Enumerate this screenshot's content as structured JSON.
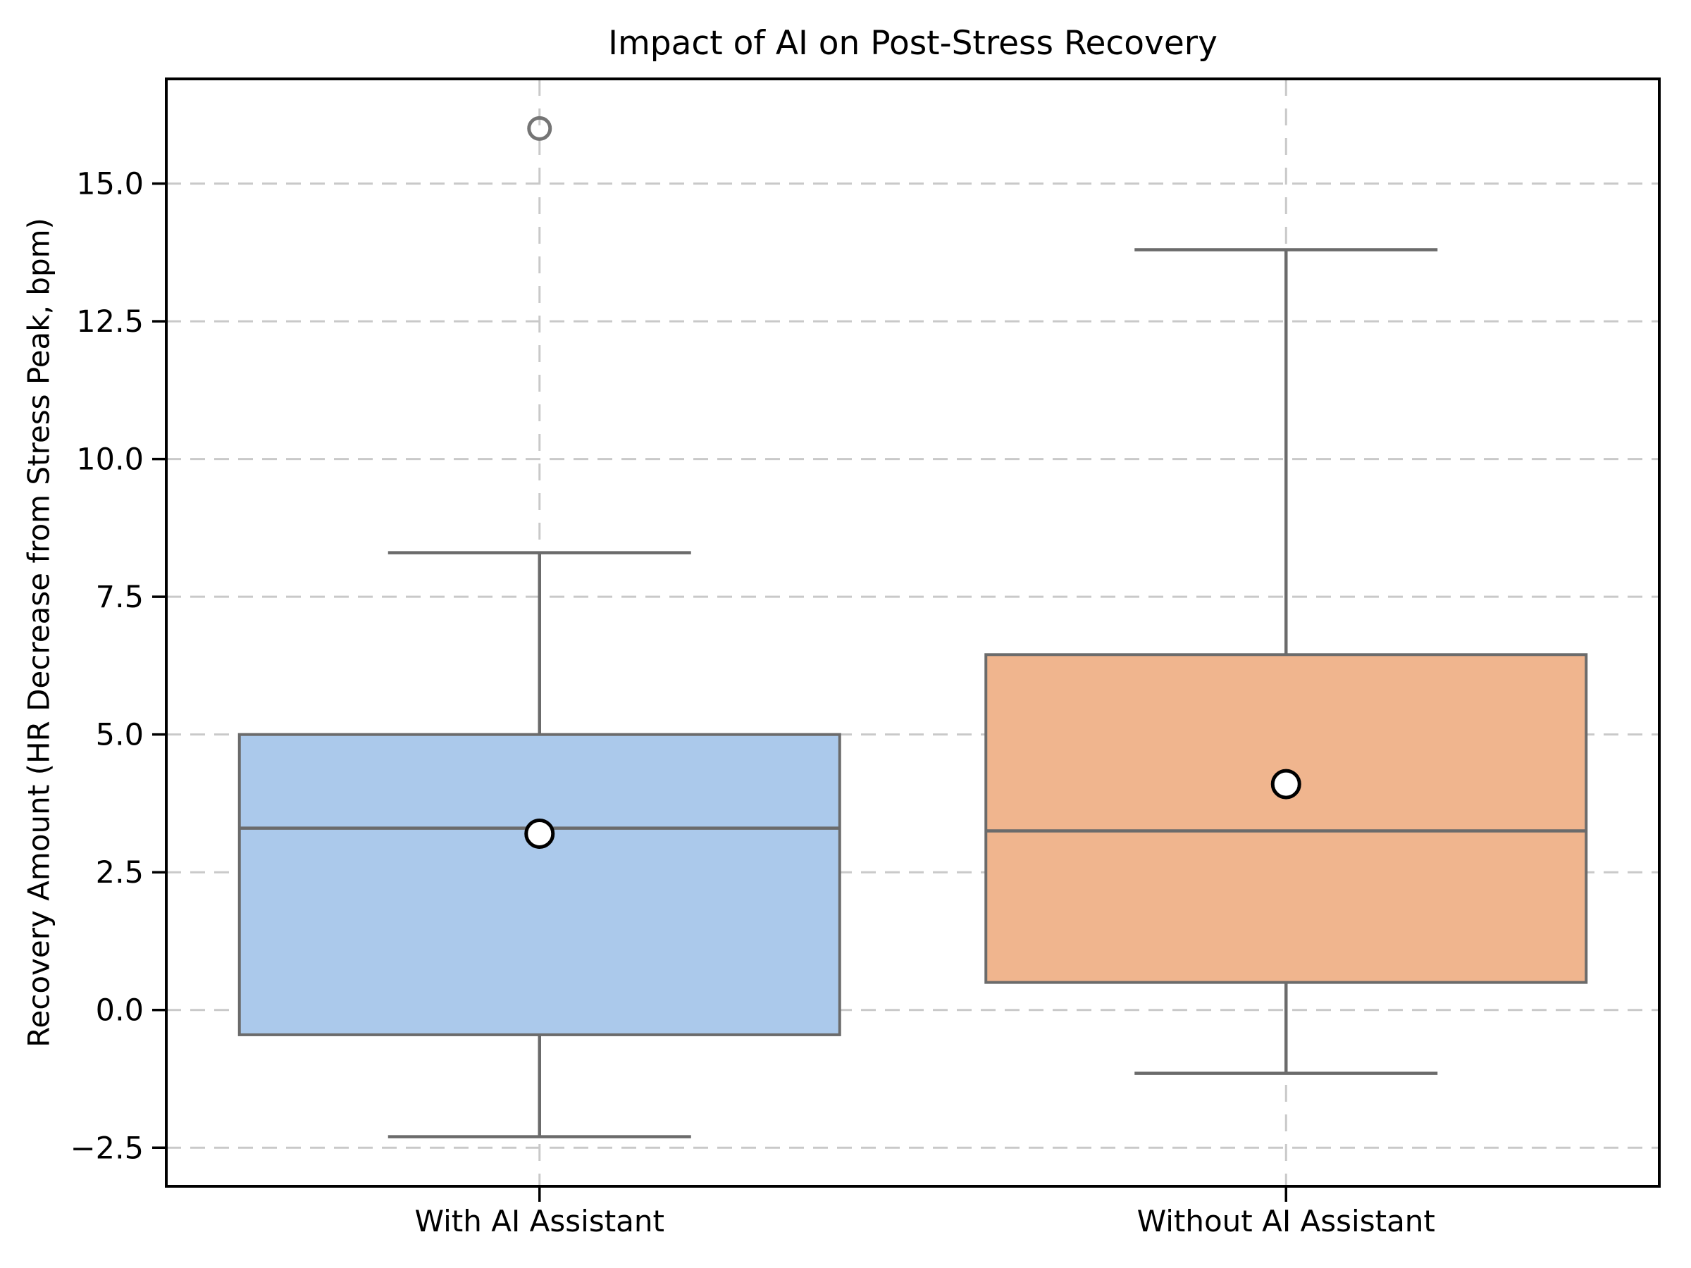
{
  "figure": {
    "title": "Impact of AI on Post-Stress Recovery"
  },
  "chart_data": {
    "type": "box",
    "title": "Impact of AI on Post-Stress Recovery",
    "xlabel": "",
    "ylabel": "Recovery Amount (HR Decrease from Stress Peak, bpm)",
    "categories": [
      "With AI Assistant",
      "Without AI Assistant"
    ],
    "ylim": [
      -3.2,
      16.9
    ],
    "grid": {
      "show": true,
      "style": "dashed",
      "color": "#c9c9c9"
    },
    "legend_position": "none",
    "y_ticks": [
      {
        "value": 15.0,
        "label": "15.0"
      },
      {
        "value": 12.5,
        "label": "12.5"
      },
      {
        "value": 10.0,
        "label": "10.0"
      },
      {
        "value": 7.5,
        "label": "7.5"
      },
      {
        "value": 5.0,
        "label": "5.0"
      },
      {
        "value": 2.5,
        "label": "2.5"
      },
      {
        "value": 0.0,
        "label": "0.0"
      },
      {
        "value": -2.5,
        "label": "−2.5"
      }
    ],
    "series": [
      {
        "name": "With AI Assistant",
        "slug": "with-ai-assistant",
        "whisker_low": -2.3,
        "q1": -0.45,
        "median": 3.3,
        "q3": 5.0,
        "whisker_high": 8.3,
        "mean": 3.2,
        "outliers": [
          16.0
        ],
        "fill_color": "#abc9eb"
      },
      {
        "name": "Without AI Assistant",
        "slug": "without-ai-assistant",
        "whisker_low": -1.15,
        "q1": 0.5,
        "median": 3.25,
        "q3": 6.45,
        "whisker_high": 13.8,
        "mean": 4.1,
        "outliers": [],
        "fill_color": "#f0b58e"
      }
    ],
    "style": {
      "box_edge_color": "#6b6b6b",
      "whisker_color": "#6b6b6b",
      "median_color": "#6b6b6b",
      "outlier_edge_color": "#757575",
      "mean_marker_fill": "#ffffff",
      "mean_marker_edge": "#000000",
      "grid_color": "#c9c9c9",
      "spine_color": "#000000",
      "background_color": "#ffffff"
    }
  }
}
